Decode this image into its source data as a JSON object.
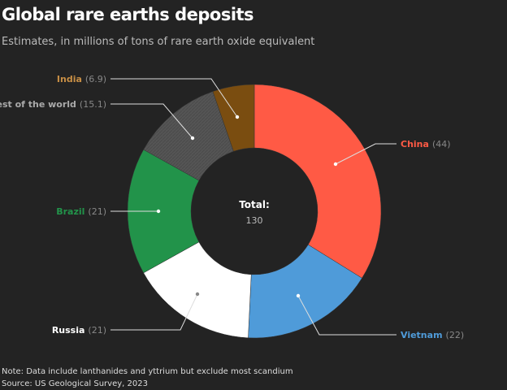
{
  "chart_data": {
    "type": "pie",
    "donut": true,
    "title": "Global rare earths deposits",
    "subtitle": "Estimates, in millions of tons of rare earth oxide equivalent",
    "center_label": "Total:",
    "center_value": "130",
    "slices": [
      {
        "name": "China",
        "value": 44,
        "color": "#ff5a45"
      },
      {
        "name": "Vietnam",
        "value": 22,
        "color": "#4f9bd9"
      },
      {
        "name": "Russia",
        "value": 21,
        "color": "#ffffff"
      },
      {
        "name": "Brazil",
        "value": 21,
        "color": "#22934a"
      },
      {
        "name": "Rest of the world",
        "value": 15.1,
        "color": "#555555",
        "pattern": "hatched"
      },
      {
        "name": "India",
        "value": 6.9,
        "color": "#7a4d10"
      }
    ],
    "label_colors": [
      "#ff5a45",
      "#4f9bd9",
      "#ffffff",
      "#22934a",
      "#aaaaaa",
      "#c88f45"
    ],
    "value_labels": [
      "(44)",
      "(22)",
      "(21)",
      "(21)",
      "(15.1)",
      "(6.9)"
    ]
  },
  "notes": [
    "Note: Data include lanthanides and yttrium but exclude most scandium",
    "Source: US Geological Survey, 2023"
  ]
}
